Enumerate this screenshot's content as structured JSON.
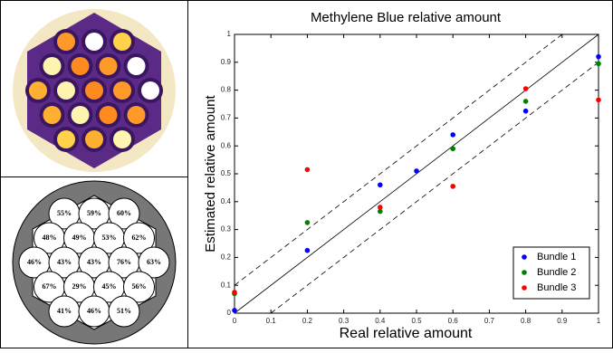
{
  "chart_data": {
    "type": "scatter",
    "title": "Methylene Blue relative amount",
    "xlabel": "Real relative amount",
    "ylabel": "Estimated relative amount",
    "xlim": [
      0,
      1
    ],
    "ylim": [
      0,
      1
    ],
    "xticks": [
      0,
      0.1,
      0.2,
      0.3,
      0.4,
      0.5,
      0.6,
      0.7,
      0.8,
      0.9,
      1
    ],
    "yticks": [
      0,
      0.1,
      0.2,
      0.3,
      0.4,
      0.5,
      0.6,
      0.7,
      0.8,
      0.9,
      1
    ],
    "legend": "lower right",
    "series": [
      {
        "name": "Bundle 1",
        "color": "#0000ff",
        "x": [
          0,
          0.2,
          0.4,
          0.5,
          0.6,
          0.8,
          1
        ],
        "values": [
          0.01,
          0.225,
          0.46,
          0.51,
          0.64,
          0.725,
          0.92
        ]
      },
      {
        "name": "Bundle 2",
        "color": "#008000",
        "x": [
          0,
          0.2,
          0.4,
          0.6,
          0.8,
          1
        ],
        "values": [
          0.07,
          0.325,
          0.365,
          0.59,
          0.76,
          0.895
        ]
      },
      {
        "name": "Bundle 3",
        "color": "#ff0000",
        "x": [
          0,
          0.2,
          0.4,
          0.6,
          0.8,
          1
        ],
        "values": [
          0.075,
          0.515,
          0.38,
          0.455,
          0.805,
          0.765
        ]
      }
    ]
  },
  "diagram": {
    "rows": [
      [
        "55%",
        "59%",
        "60%"
      ],
      [
        "48%",
        "49%",
        "53%",
        "62%"
      ],
      [
        "46%",
        "43%",
        "43%",
        "76%",
        "63%"
      ],
      [
        "67%",
        "29%",
        "45%",
        "56%"
      ],
      [
        "41%",
        "46%",
        "51%"
      ]
    ]
  }
}
